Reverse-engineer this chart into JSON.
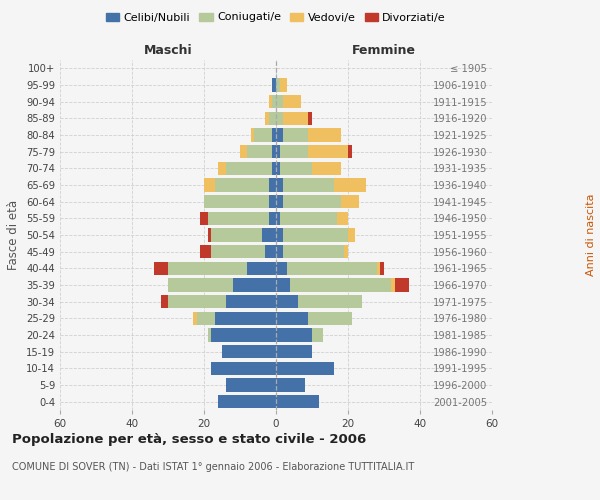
{
  "age_groups": [
    "0-4",
    "5-9",
    "10-14",
    "15-19",
    "20-24",
    "25-29",
    "30-34",
    "35-39",
    "40-44",
    "45-49",
    "50-54",
    "55-59",
    "60-64",
    "65-69",
    "70-74",
    "75-79",
    "80-84",
    "85-89",
    "90-94",
    "95-99",
    "100+"
  ],
  "birth_years": [
    "2001-2005",
    "1996-2000",
    "1991-1995",
    "1986-1990",
    "1981-1985",
    "1976-1980",
    "1971-1975",
    "1966-1970",
    "1961-1965",
    "1956-1960",
    "1951-1955",
    "1946-1950",
    "1941-1945",
    "1936-1940",
    "1931-1935",
    "1926-1930",
    "1921-1925",
    "1916-1920",
    "1911-1915",
    "1906-1910",
    "≤ 1905"
  ],
  "males": {
    "celibi": [
      16,
      14,
      18,
      15,
      18,
      17,
      14,
      12,
      8,
      3,
      4,
      2,
      2,
      2,
      1,
      1,
      1,
      0,
      0,
      1,
      0
    ],
    "coniugati": [
      0,
      0,
      0,
      0,
      1,
      5,
      16,
      18,
      22,
      15,
      14,
      17,
      18,
      15,
      13,
      7,
      5,
      2,
      1,
      0,
      0
    ],
    "vedovi": [
      0,
      0,
      0,
      0,
      0,
      1,
      0,
      0,
      0,
      0,
      0,
      0,
      0,
      3,
      2,
      2,
      1,
      1,
      1,
      0,
      0
    ],
    "divorziati": [
      0,
      0,
      0,
      0,
      0,
      0,
      2,
      0,
      4,
      3,
      1,
      2,
      0,
      0,
      0,
      0,
      0,
      0,
      0,
      0,
      0
    ]
  },
  "females": {
    "nubili": [
      12,
      8,
      16,
      10,
      10,
      9,
      6,
      4,
      3,
      2,
      2,
      1,
      2,
      2,
      1,
      1,
      2,
      0,
      0,
      0,
      0
    ],
    "coniugate": [
      0,
      0,
      0,
      0,
      3,
      12,
      18,
      28,
      25,
      17,
      18,
      16,
      16,
      14,
      9,
      8,
      7,
      2,
      2,
      1,
      0
    ],
    "vedove": [
      0,
      0,
      0,
      0,
      0,
      0,
      0,
      1,
      1,
      1,
      2,
      3,
      5,
      9,
      8,
      11,
      9,
      7,
      5,
      2,
      0
    ],
    "divorziate": [
      0,
      0,
      0,
      0,
      0,
      0,
      0,
      4,
      1,
      0,
      0,
      0,
      0,
      0,
      0,
      1,
      0,
      1,
      0,
      0,
      0
    ]
  },
  "colors": {
    "celibi_nubili": "#4472a8",
    "coniugati": "#b5c99a",
    "vedovi": "#f0c060",
    "divorziati": "#c0392b"
  },
  "xlim": 60,
  "title": "Popolazione per età, sesso e stato civile - 2006",
  "subtitle": "COMUNE DI SOVER (TN) - Dati ISTAT 1° gennaio 2006 - Elaborazione TUTTITALIA.IT",
  "ylabel_left": "Fasce di età",
  "ylabel_right": "Anni di nascita",
  "xlabel_maschi": "Maschi",
  "xlabel_femmine": "Femmine",
  "bg_color": "#f5f5f5",
  "grid_color": "#cccccc"
}
